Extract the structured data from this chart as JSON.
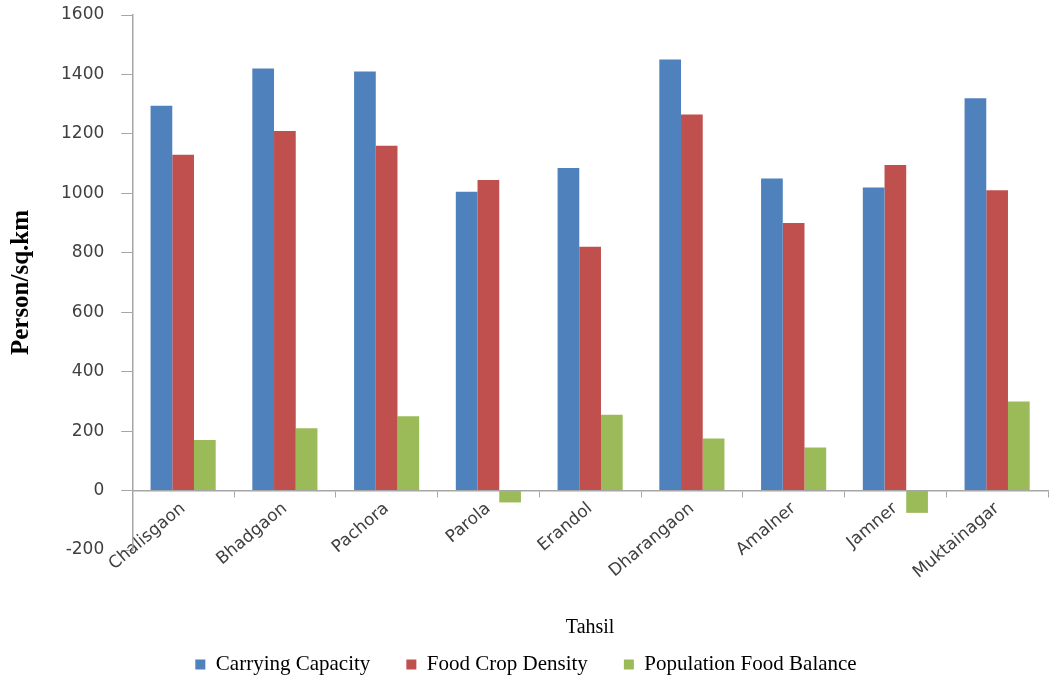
{
  "chart_data": {
    "type": "bar",
    "xlabel": "Tahsil",
    "ylabel": "Person/sq.km",
    "categories": [
      "Chalisgaon",
      "Bhadgaon",
      "Pachora",
      "Parola",
      "Erandol",
      "Dharangaon",
      "Amalner",
      "Jamner",
      "Muktainagar"
    ],
    "series": [
      {
        "name": "Carrying Capacity",
        "color": "#4f81bd",
        "values": [
          1295,
          1420,
          1410,
          1005,
          1085,
          1450,
          1050,
          1020,
          1320
        ]
      },
      {
        "name": "Food Crop Density",
        "color": "#c0504d",
        "values": [
          1130,
          1210,
          1160,
          1045,
          820,
          1265,
          900,
          1095,
          1010
        ]
      },
      {
        "name": "Population Food Balance",
        "color": "#9bbb59",
        "values": [
          170,
          210,
          250,
          -40,
          255,
          175,
          145,
          -75,
          300
        ]
      }
    ],
    "ylim": [
      -200,
      1600
    ],
    "yticks": [
      -200,
      0,
      200,
      400,
      600,
      800,
      1000,
      1200,
      1400,
      1600
    ],
    "legend": "bottom"
  }
}
